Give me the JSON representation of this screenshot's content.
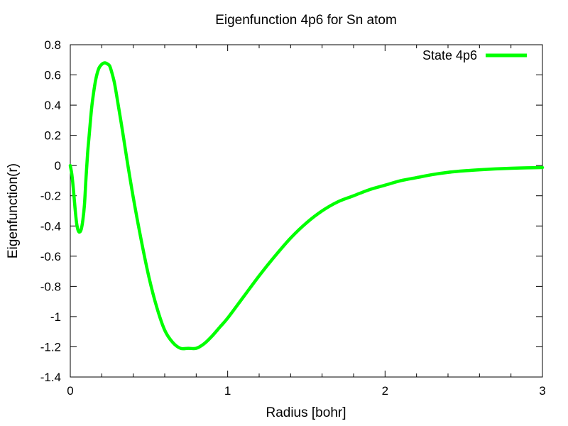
{
  "chart_data": {
    "type": "line",
    "title": "Eigenfunction 4p6 for Sn atom",
    "xlabel": "Radius [bohr]",
    "ylabel": "Eigenfunction(r)",
    "xlim": [
      0,
      3
    ],
    "ylim": [
      -1.4,
      0.8
    ],
    "x_ticks": [
      0,
      1,
      2,
      3
    ],
    "x_tick_labels": [
      "0",
      "1",
      "2",
      "3"
    ],
    "y_ticks": [
      0.8,
      0.6,
      0.4,
      0.2,
      0,
      -0.2,
      -0.4,
      -0.6,
      -0.8,
      -1,
      -1.2,
      -1.4
    ],
    "y_tick_labels": [
      "0.8",
      "0.6",
      "0.4",
      "0.2",
      "0",
      "-0.2",
      "-0.4",
      "-0.6",
      "-0.8",
      "-1",
      "-1.2",
      "-1.4"
    ],
    "grid": false,
    "legend_position": "top-right",
    "series": [
      {
        "name": "State 4p6",
        "color": "#00ff00",
        "x": [
          0,
          0.01,
          0.02,
          0.03,
          0.04,
          0.05,
          0.06,
          0.07,
          0.08,
          0.09,
          0.1,
          0.11,
          0.12,
          0.13,
          0.14,
          0.16,
          0.18,
          0.2,
          0.22,
          0.24,
          0.25,
          0.26,
          0.28,
          0.3,
          0.33,
          0.36,
          0.4,
          0.45,
          0.5,
          0.55,
          0.6,
          0.65,
          0.7,
          0.75,
          0.8,
          0.85,
          0.9,
          0.95,
          1.0,
          1.1,
          1.2,
          1.3,
          1.4,
          1.5,
          1.6,
          1.7,
          1.8,
          1.9,
          2.0,
          2.1,
          2.2,
          2.3,
          2.4,
          2.5,
          2.6,
          2.7,
          2.8,
          2.9,
          3.0
        ],
        "y": [
          0,
          -0.06,
          -0.16,
          -0.28,
          -0.38,
          -0.43,
          -0.44,
          -0.42,
          -0.36,
          -0.26,
          -0.08,
          0.08,
          0.2,
          0.32,
          0.42,
          0.56,
          0.64,
          0.67,
          0.68,
          0.67,
          0.66,
          0.63,
          0.55,
          0.43,
          0.24,
          0.04,
          -0.21,
          -0.49,
          -0.74,
          -0.94,
          -1.09,
          -1.17,
          -1.21,
          -1.21,
          -1.21,
          -1.18,
          -1.13,
          -1.07,
          -1.01,
          -0.87,
          -0.73,
          -0.6,
          -0.48,
          -0.38,
          -0.3,
          -0.24,
          -0.2,
          -0.16,
          -0.13,
          -0.1,
          -0.08,
          -0.06,
          -0.045,
          -0.035,
          -0.028,
          -0.022,
          -0.018,
          -0.015,
          -0.013
        ]
      }
    ]
  }
}
